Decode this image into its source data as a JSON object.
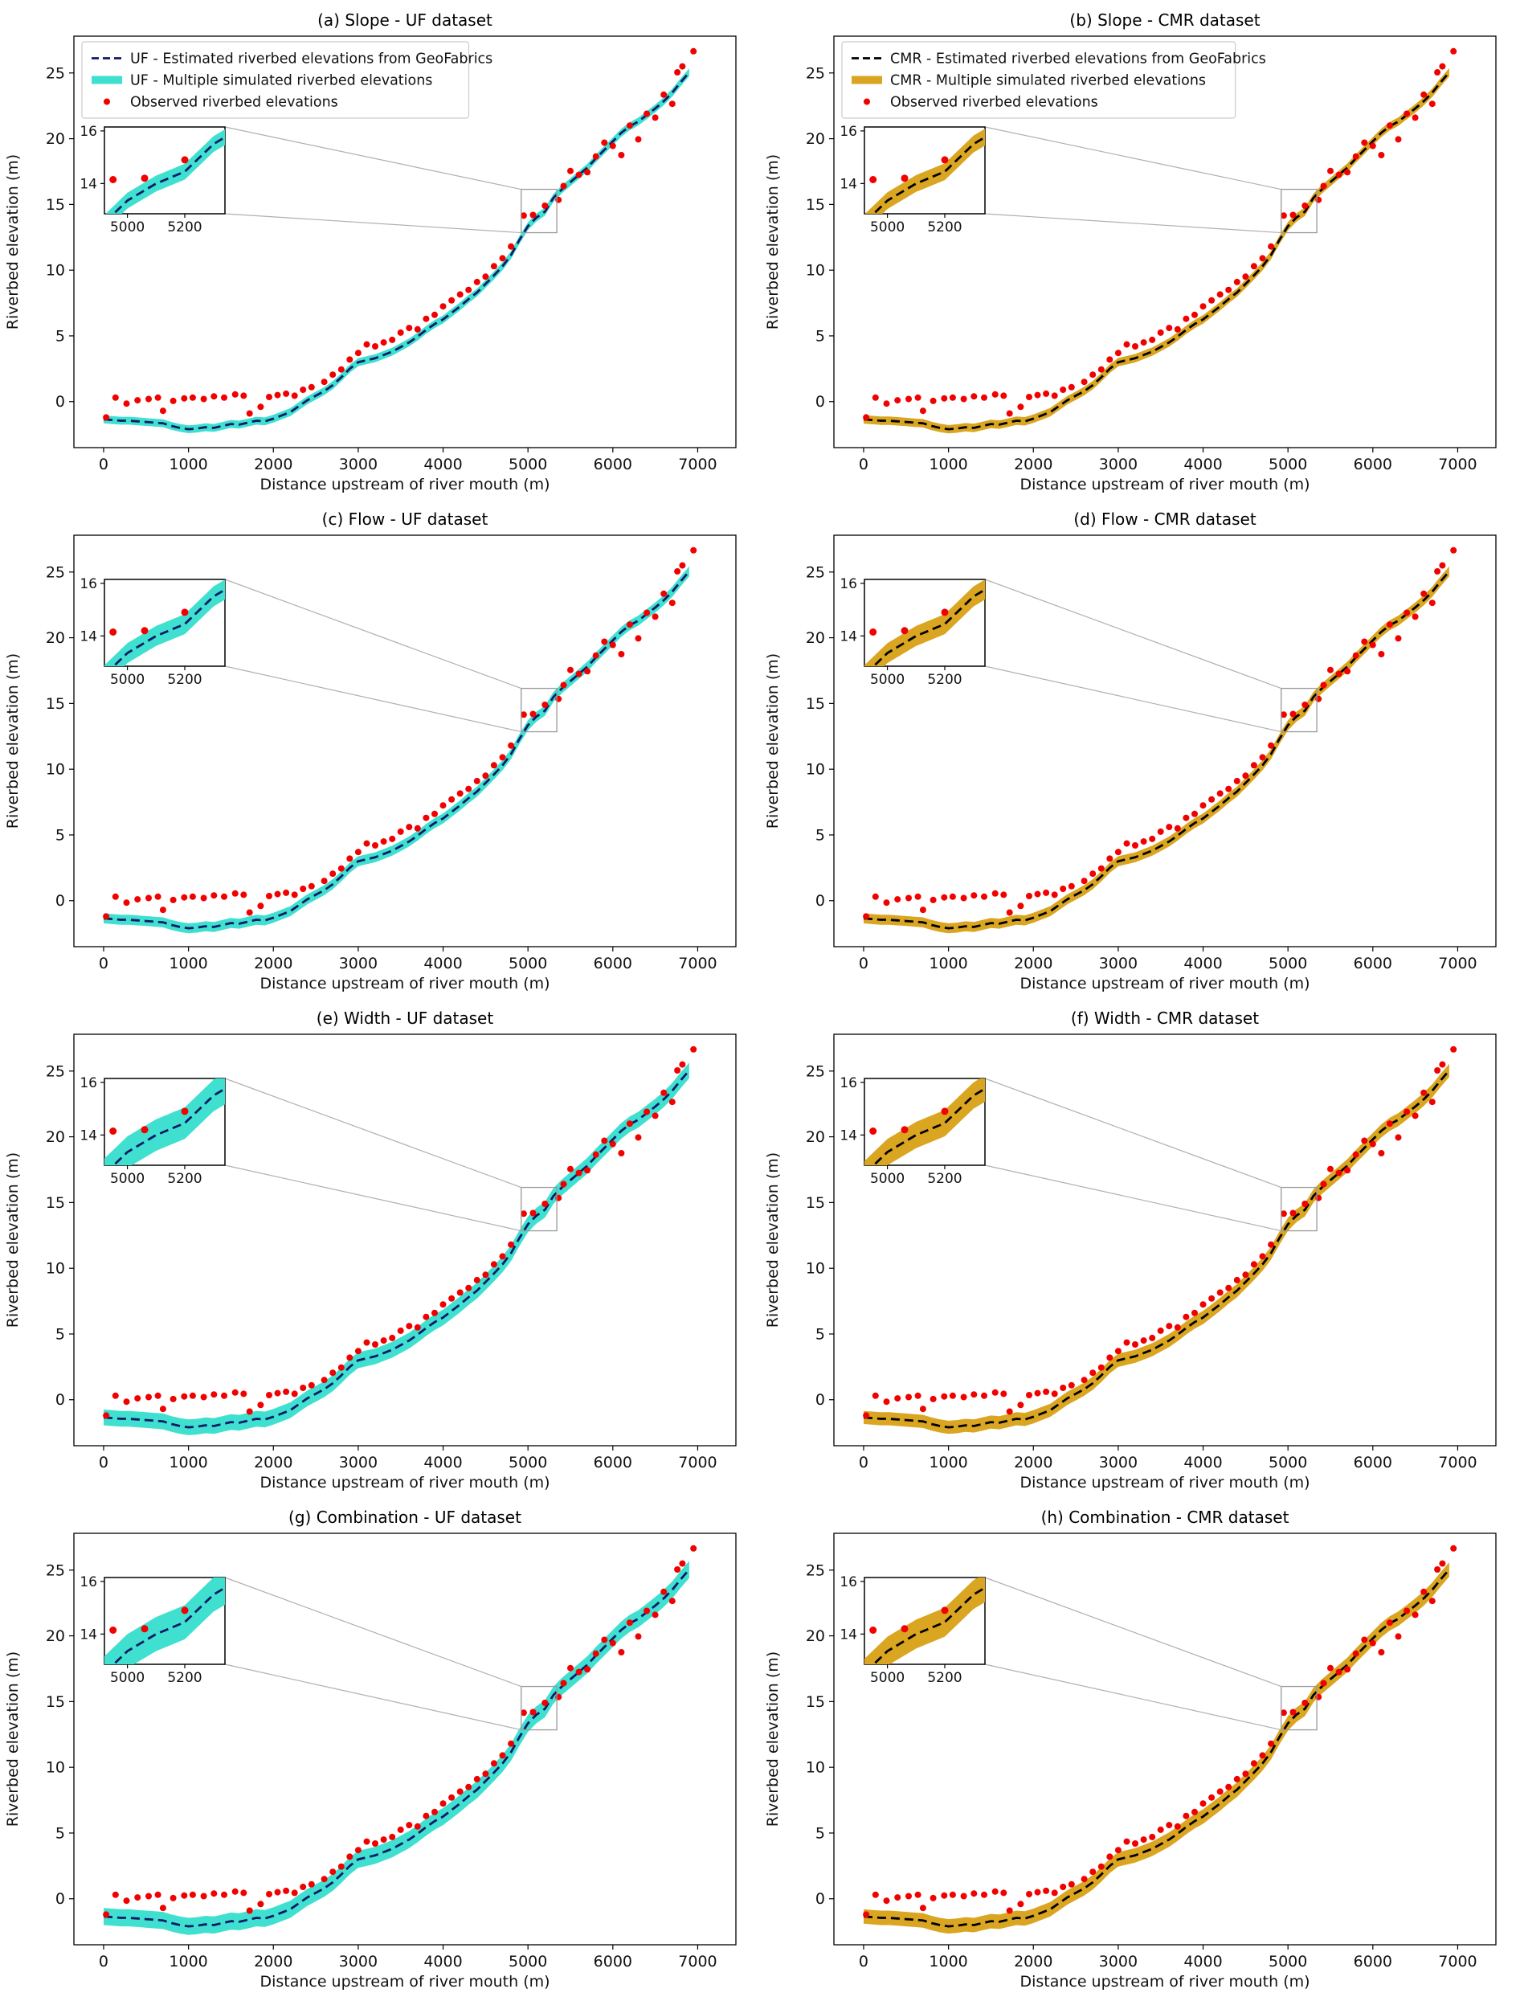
{
  "figure": {
    "background": "#ffffff",
    "axes_color": "#000000",
    "zoom_box_color": "#999999",
    "connector_color": "#b0b0b0"
  },
  "chart_data": {
    "type": "line",
    "description": "Eight-panel comparison of estimated, simulated and observed riverbed elevation profiles",
    "shared": {
      "xlabel": "Distance upstream of river mouth (m)",
      "ylabel": "Riverbed elevation (m)",
      "xlim": [
        -350,
        7450
      ],
      "ylim": [
        -3.5,
        27.8
      ],
      "xticks": [
        0,
        1000,
        2000,
        3000,
        4000,
        5000,
        6000,
        7000
      ],
      "yticks": [
        0,
        5,
        10,
        15,
        20,
        25
      ],
      "observed_color": "#f20000",
      "x": [
        0,
        100,
        200,
        300,
        400,
        500,
        600,
        700,
        800,
        900,
        1000,
        1100,
        1200,
        1300,
        1400,
        1500,
        1600,
        1700,
        1800,
        1900,
        2000,
        2100,
        2200,
        2300,
        2400,
        2500,
        2600,
        2700,
        2800,
        2900,
        3000,
        3100,
        3200,
        3300,
        3400,
        3500,
        3600,
        3700,
        3800,
        3900,
        4000,
        4100,
        4200,
        4300,
        4400,
        4500,
        4600,
        4700,
        4800,
        4900,
        5000,
        5100,
        5200,
        5300,
        5400,
        5500,
        5600,
        5700,
        5800,
        5900,
        6000,
        6100,
        6200,
        6300,
        6400,
        6500,
        6600,
        6700,
        6800,
        6900
      ],
      "estimated_y": [
        -1.35,
        -1.4,
        -1.45,
        -1.45,
        -1.5,
        -1.55,
        -1.6,
        -1.65,
        -1.85,
        -2.0,
        -2.1,
        -2.05,
        -1.95,
        -2.0,
        -1.85,
        -1.7,
        -1.75,
        -1.6,
        -1.45,
        -1.5,
        -1.3,
        -1.05,
        -0.8,
        -0.35,
        0.1,
        0.45,
        0.8,
        1.25,
        1.85,
        2.5,
        3.0,
        3.15,
        3.3,
        3.55,
        3.8,
        4.15,
        4.5,
        4.95,
        5.45,
        5.9,
        6.25,
        6.75,
        7.25,
        7.8,
        8.3,
        8.95,
        9.6,
        10.3,
        11.15,
        12.3,
        13.35,
        14.0,
        14.45,
        15.5,
        16.15,
        16.7,
        17.25,
        17.8,
        18.5,
        19.15,
        19.8,
        20.45,
        20.95,
        21.3,
        21.8,
        22.3,
        22.85,
        23.5,
        24.3,
        25.05
      ],
      "observed": [
        [
          30,
          -1.2
        ],
        [
          140,
          0.3
        ],
        [
          270,
          -0.15
        ],
        [
          400,
          0.1
        ],
        [
          530,
          0.2
        ],
        [
          640,
          0.3
        ],
        [
          700,
          -0.7
        ],
        [
          820,
          0.05
        ],
        [
          950,
          0.25
        ],
        [
          1050,
          0.3
        ],
        [
          1180,
          0.2
        ],
        [
          1300,
          0.4
        ],
        [
          1420,
          0.3
        ],
        [
          1550,
          0.55
        ],
        [
          1650,
          0.45
        ],
        [
          1720,
          -0.9
        ],
        [
          1850,
          -0.4
        ],
        [
          1950,
          0.35
        ],
        [
          2050,
          0.5
        ],
        [
          2150,
          0.6
        ],
        [
          2250,
          0.45
        ],
        [
          2350,
          0.9
        ],
        [
          2450,
          1.1
        ],
        [
          2600,
          1.5
        ],
        [
          2700,
          2.05
        ],
        [
          2800,
          2.45
        ],
        [
          2900,
          3.2
        ],
        [
          3000,
          3.7
        ],
        [
          3100,
          4.35
        ],
        [
          3200,
          4.2
        ],
        [
          3300,
          4.5
        ],
        [
          3400,
          4.7
        ],
        [
          3500,
          5.25
        ],
        [
          3600,
          5.6
        ],
        [
          3700,
          5.5
        ],
        [
          3800,
          6.3
        ],
        [
          3900,
          6.6
        ],
        [
          4000,
          7.25
        ],
        [
          4100,
          7.7
        ],
        [
          4200,
          8.15
        ],
        [
          4300,
          8.5
        ],
        [
          4400,
          9.1
        ],
        [
          4500,
          9.5
        ],
        [
          4600,
          10.3
        ],
        [
          4700,
          10.9
        ],
        [
          4800,
          11.8
        ],
        [
          4950,
          14.15
        ],
        [
          5060,
          14.2
        ],
        [
          5200,
          14.9
        ],
        [
          5360,
          15.35
        ],
        [
          5420,
          16.4
        ],
        [
          5500,
          17.55
        ],
        [
          5600,
          17.25
        ],
        [
          5700,
          17.45
        ],
        [
          5800,
          18.65
        ],
        [
          5900,
          19.7
        ],
        [
          6000,
          19.45
        ],
        [
          6100,
          18.75
        ],
        [
          6200,
          21.0
        ],
        [
          6300,
          19.95
        ],
        [
          6400,
          21.9
        ],
        [
          6500,
          21.6
        ],
        [
          6600,
          23.35
        ],
        [
          6700,
          22.65
        ],
        [
          6760,
          25.05
        ],
        [
          6820,
          25.5
        ],
        [
          6950,
          26.65
        ]
      ],
      "inset": {
        "xlim": [
          4920,
          5340
        ],
        "ylim": [
          12.85,
          16.15
        ],
        "xticks": [
          5000,
          5200
        ],
        "yticks": [
          14,
          16
        ]
      }
    },
    "panels": [
      {
        "key": "a",
        "title": "(a) Slope - UF dataset",
        "dataset": "UF",
        "line_color": "#0d1a66",
        "band_color": "#40E0D0",
        "band_halfwidth": 0.3,
        "legend": [
          "UF - Estimated riverbed elevations from GeoFabrics",
          "UF - Multiple simulated riverbed elevations",
          "Observed riverbed elevations"
        ]
      },
      {
        "key": "b",
        "title": "(b) Slope - CMR dataset",
        "dataset": "CMR",
        "line_color": "#000000",
        "band_color": "#DAA520",
        "band_halfwidth": 0.32,
        "legend": [
          "CMR - Estimated riverbed elevations from GeoFabrics",
          "CMR - Multiple simulated riverbed elevations",
          "Observed riverbed elevations"
        ]
      },
      {
        "key": "c",
        "title": "(c) Flow - UF dataset",
        "dataset": "UF",
        "line_color": "#0d1a66",
        "band_color": "#40E0D0",
        "band_halfwidth": 0.38,
        "legend": null
      },
      {
        "key": "d",
        "title": "(d) Flow - CMR dataset",
        "dataset": "CMR",
        "line_color": "#000000",
        "band_color": "#DAA520",
        "band_halfwidth": 0.38,
        "legend": null
      },
      {
        "key": "e",
        "title": "(e) Width - UF dataset",
        "dataset": "UF",
        "line_color": "#0d1a66",
        "band_color": "#40E0D0",
        "band_halfwidth": 0.6,
        "legend": null
      },
      {
        "key": "f",
        "title": "(f) Width - CMR dataset",
        "dataset": "CMR",
        "line_color": "#000000",
        "band_color": "#DAA520",
        "band_halfwidth": 0.5,
        "legend": null
      },
      {
        "key": "g",
        "title": "(g) Combination - UF dataset",
        "dataset": "UF",
        "line_color": "#0d1a66",
        "band_color": "#40E0D0",
        "band_halfwidth": 0.65,
        "legend": null
      },
      {
        "key": "h",
        "title": "(h) Combination - CMR dataset",
        "dataset": "CMR",
        "line_color": "#000000",
        "band_color": "#DAA520",
        "band_halfwidth": 0.55,
        "legend": null
      }
    ]
  }
}
